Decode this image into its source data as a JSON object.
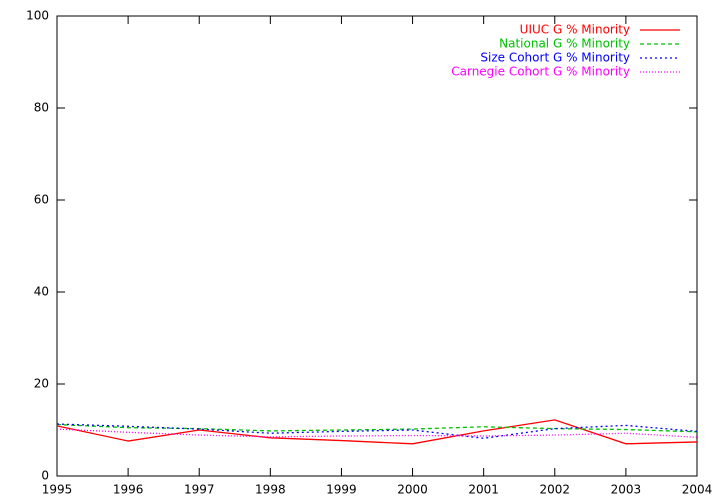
{
  "chart_data": {
    "type": "line",
    "x": [
      1995,
      1996,
      1997,
      1998,
      1999,
      2000,
      2001,
      2002,
      2003,
      2004
    ],
    "xlim": [
      1995,
      2004
    ],
    "xticks": [
      1995,
      1996,
      1997,
      1998,
      1999,
      2000,
      2001,
      2002,
      2003,
      2004
    ],
    "ylim": [
      0,
      100
    ],
    "yticks": [
      0,
      20,
      40,
      60,
      80,
      100
    ],
    "legend": "top-right",
    "series": [
      {
        "name": "UIUC G % Minority",
        "color": "#ff0000",
        "dash": "none",
        "values": [
          10.9,
          7.6,
          10.0,
          8.3,
          7.7,
          7.0,
          9.8,
          12.2,
          7.0,
          7.4
        ]
      },
      {
        "name": "National G % Minority",
        "color": "#00c000",
        "dash": "4,3",
        "values": [
          11.2,
          10.5,
          10.3,
          9.8,
          10.0,
          10.2,
          10.7,
          10.3,
          10.1,
          9.6
        ]
      },
      {
        "name": "Size Cohort G % Minority",
        "color": "#0000ff",
        "dash": "2,3",
        "values": [
          11.3,
          10.8,
          10.2,
          9.3,
          9.7,
          10.0,
          8.2,
          10.3,
          11.0,
          9.7
        ]
      },
      {
        "name": "Carnegie Cohort G % Minority",
        "color": "#ff00ff",
        "dash": "1,2",
        "values": [
          10.2,
          9.5,
          8.9,
          8.5,
          8.7,
          8.8,
          8.7,
          8.9,
          9.3,
          8.4
        ]
      }
    ]
  }
}
